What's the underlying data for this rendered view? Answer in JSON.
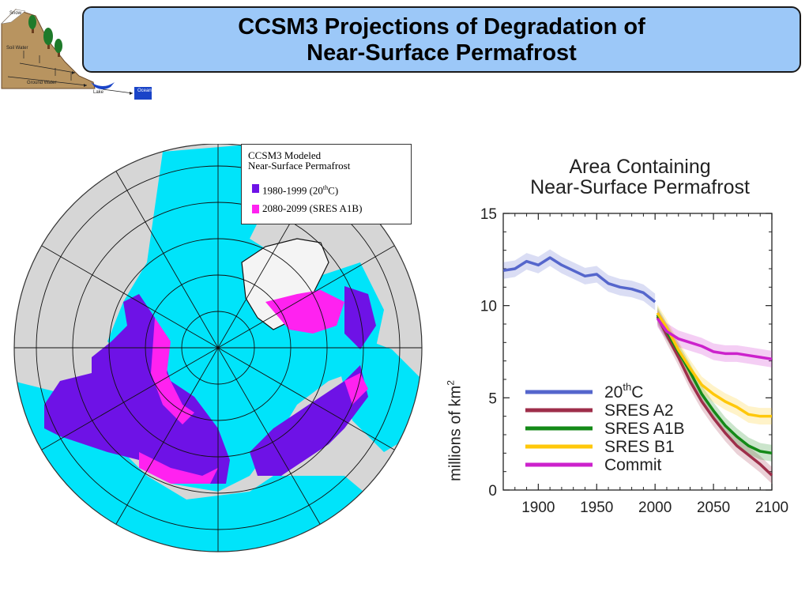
{
  "title": {
    "line1": "CCSM3 Projections of Degradation of",
    "line2": "Near-Surface Permafrost"
  },
  "logo": {
    "labels": [
      "Snow",
      "Soil Water",
      "Ground Water",
      "Lake",
      "Ocean"
    ]
  },
  "map": {
    "legend": {
      "heading_line1": "CCSM3 Modeled",
      "heading_line2": "Near-Surface Permafrost",
      "entry1_prefix": "1980-1999 (20",
      "entry1_sup": "th",
      "entry1_suffix": "C)",
      "entry1_color": "#6e12e6",
      "entry2": "2080-2099 (SRES A1B)",
      "entry2_color": "#ff22f0"
    },
    "colors": {
      "ocean": "#00e4fa",
      "land": "#d6d6d6",
      "ice": "#f4f4f4",
      "permafrost_20c": "#6e12e6",
      "permafrost_a1b": "#ff22f0"
    }
  },
  "chart_data": {
    "type": "line",
    "title_line1": "Area Containing",
    "title_line2": "Near-Surface Permafrost",
    "ylabel": "millions of km",
    "ylabel_sup": "2",
    "xlabel": "",
    "xlim": [
      1870,
      2100
    ],
    "ylim": [
      0,
      15
    ],
    "xticks": [
      1900,
      1950,
      2000,
      2050,
      2100
    ],
    "yticks": [
      0,
      5,
      10,
      15
    ],
    "legend_position": "bottom-left",
    "series": [
      {
        "name": "20",
        "name_sup": "th",
        "name_suffix": "C",
        "color": "#5566cc",
        "x": [
          1870,
          1880,
          1890,
          1900,
          1910,
          1920,
          1930,
          1940,
          1950,
          1960,
          1970,
          1980,
          1990,
          2000
        ],
        "y": [
          11.9,
          12.0,
          12.4,
          12.2,
          12.6,
          12.2,
          11.9,
          11.6,
          11.7,
          11.2,
          11.0,
          10.9,
          10.7,
          10.2
        ]
      },
      {
        "name": "SRES A2",
        "color": "#9e2e4a",
        "x": [
          2002,
          2010,
          2020,
          2030,
          2040,
          2050,
          2060,
          2070,
          2080,
          2090,
          2100
        ],
        "y": [
          9.4,
          8.4,
          7.2,
          5.9,
          4.8,
          3.9,
          3.1,
          2.4,
          1.9,
          1.4,
          0.8
        ]
      },
      {
        "name": "SRES A1B",
        "color": "#148a18",
        "x": [
          2002,
          2010,
          2020,
          2030,
          2040,
          2050,
          2060,
          2070,
          2080,
          2090,
          2100
        ],
        "y": [
          9.5,
          8.6,
          7.5,
          6.4,
          5.2,
          4.3,
          3.5,
          2.9,
          2.4,
          2.1,
          2.0
        ]
      },
      {
        "name": "SRES B1",
        "color": "#ffc80a",
        "x": [
          2002,
          2010,
          2020,
          2030,
          2040,
          2050,
          2060,
          2070,
          2080,
          2090,
          2100
        ],
        "y": [
          9.6,
          8.8,
          7.6,
          6.6,
          5.7,
          5.2,
          4.8,
          4.5,
          4.1,
          4.0,
          4.0
        ]
      },
      {
        "name": "Commit",
        "color": "#cc22cc",
        "x": [
          2002,
          2010,
          2020,
          2030,
          2040,
          2050,
          2060,
          2070,
          2080,
          2090,
          2100
        ],
        "y": [
          9.3,
          8.6,
          8.2,
          8.0,
          7.8,
          7.5,
          7.4,
          7.4,
          7.3,
          7.2,
          7.1
        ]
      }
    ]
  }
}
